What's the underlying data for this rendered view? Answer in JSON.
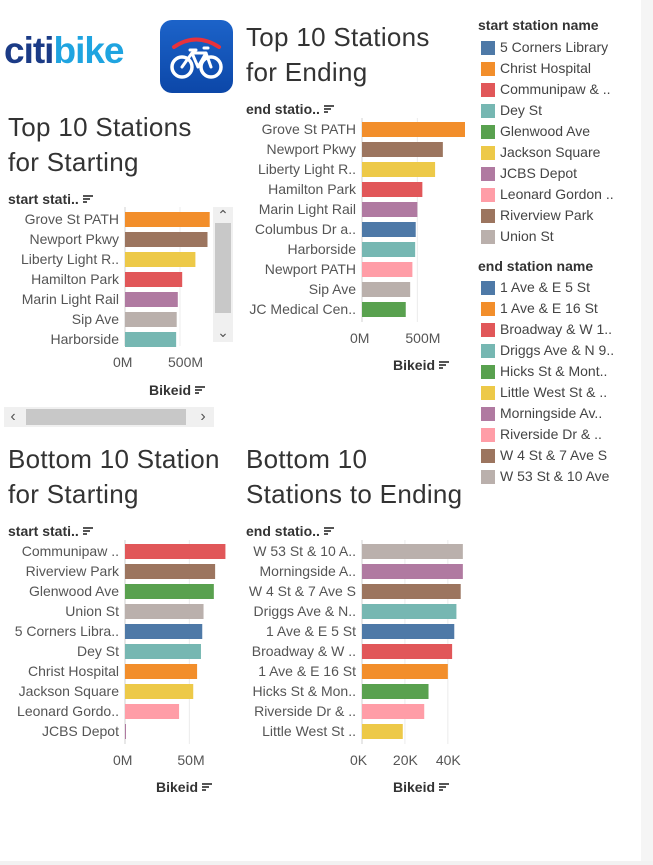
{
  "brand": {
    "logo_part1": "citi",
    "logo_part2": "bike"
  },
  "titles": {
    "top_ending": [
      "Top 10 Stations",
      "for Ending"
    ],
    "top_starting": [
      "Top 10 Stations",
      "for Starting"
    ],
    "bottom_starting": [
      "Bottom 10 Station",
      "for Starting"
    ],
    "bottom_ending": [
      "Bottom 10",
      "Stations to Ending"
    ]
  },
  "headers": {
    "start": "start stati..",
    "end": "end statio.."
  },
  "axis_title": "Bikeid",
  "scroll": {
    "up": "⌃",
    "down": "⌄",
    "left": "‹",
    "right": "›"
  },
  "colors": {
    "blue": "#4e79a7",
    "orange": "#f28e2b",
    "red": "#e15759",
    "teal": "#76b7b2",
    "green": "#59a14f",
    "yellow": "#edc948",
    "purple": "#b07aa1",
    "pink": "#ff9da7",
    "brown": "#9c755f",
    "gray": "#bab0ac"
  },
  "legend": {
    "start": {
      "title": "start station name",
      "items": [
        {
          "label": "5 Corners Library",
          "color": "#4e79a7"
        },
        {
          "label": "Christ Hospital",
          "color": "#f28e2b"
        },
        {
          "label": "Communipaw & ..",
          "color": "#e15759"
        },
        {
          "label": "Dey St",
          "color": "#76b7b2"
        },
        {
          "label": "Glenwood Ave",
          "color": "#59a14f"
        },
        {
          "label": "Jackson Square",
          "color": "#edc948"
        },
        {
          "label": "JCBS Depot",
          "color": "#b07aa1"
        },
        {
          "label": "Leonard Gordon ..",
          "color": "#ff9da7"
        },
        {
          "label": "Riverview Park",
          "color": "#9c755f"
        },
        {
          "label": "Union St",
          "color": "#bab0ac"
        }
      ]
    },
    "end": {
      "title": "end station name",
      "items": [
        {
          "label": "1 Ave & E 5 St",
          "color": "#4e79a7"
        },
        {
          "label": "1 Ave & E 16 St",
          "color": "#f28e2b"
        },
        {
          "label": "Broadway & W 1..",
          "color": "#e15759"
        },
        {
          "label": "Driggs Ave & N 9..",
          "color": "#76b7b2"
        },
        {
          "label": "Hicks St & Mont..",
          "color": "#59a14f"
        },
        {
          "label": "Little West St & ..",
          "color": "#edc948"
        },
        {
          "label": "Morningside Av..",
          "color": "#b07aa1"
        },
        {
          "label": "Riverside Dr & ..",
          "color": "#ff9da7"
        },
        {
          "label": "W 4 St & 7 Ave S",
          "color": "#9c755f"
        },
        {
          "label": "W 53 St & 10 Ave",
          "color": "#bab0ac"
        }
      ]
    }
  },
  "chart_data": [
    {
      "type": "bar",
      "orientation": "horizontal",
      "title": "Top 10 Stations for Ending",
      "field_header": "end statio..",
      "xlabel": "Bikeid",
      "xlim": [
        0,
        930
      ],
      "x_unit": "M",
      "ticks": [
        {
          "value": 0,
          "label": "0M"
        },
        {
          "value": 500,
          "label": "500M"
        }
      ],
      "categories": [
        "Grove St PATH",
        "Newport Pkwy",
        "Liberty Light R..",
        "Hamilton Park",
        "Marin Light Rail",
        "Columbus Dr a..",
        "Harborside",
        "Newport PATH",
        "Sip Ave",
        "JC Medical Cen.."
      ],
      "values": [
        930,
        730,
        660,
        545,
        500,
        485,
        480,
        455,
        435,
        395
      ],
      "colors": [
        "#f28e2b",
        "#9c755f",
        "#edc948",
        "#e15759",
        "#b07aa1",
        "#4e79a7",
        "#76b7b2",
        "#ff9da7",
        "#bab0ac",
        "#59a14f"
      ]
    },
    {
      "type": "bar",
      "orientation": "horizontal",
      "title": "Top 10 Stations for Starting",
      "field_header": "start stati..",
      "xlabel": "Bikeid",
      "xlim": [
        0,
        800
      ],
      "x_unit": "M",
      "ticks": [
        {
          "value": 0,
          "label": "0M"
        },
        {
          "value": 500,
          "label": "500M"
        }
      ],
      "categories": [
        "Grove St PATH",
        "Newport Pkwy",
        "Liberty Light R..",
        "Hamilton Park",
        "Marin Light Rail",
        "Sip Ave",
        "Harborside"
      ],
      "values": [
        770,
        750,
        640,
        520,
        480,
        470,
        465
      ],
      "colors": [
        "#f28e2b",
        "#9c755f",
        "#edc948",
        "#e15759",
        "#b07aa1",
        "#bab0ac",
        "#76b7b2"
      ]
    },
    {
      "type": "bar",
      "orientation": "horizontal",
      "title": "Bottom 10 Station for Starting",
      "field_header": "start stati..",
      "xlabel": "Bikeid",
      "xlim": [
        0,
        80
      ],
      "x_unit": "M",
      "ticks": [
        {
          "value": 0,
          "label": "0M"
        },
        {
          "value": 50,
          "label": "50M"
        }
      ],
      "categories": [
        "Communipaw ..",
        "Riverview Park",
        "Glenwood Ave",
        "Union St",
        "5 Corners Libra..",
        "Dey St",
        "Christ Hospital",
        "Jackson Square",
        "Leonard Gordo..",
        "JCBS Depot"
      ],
      "values": [
        78,
        70,
        69,
        61,
        60,
        59,
        56,
        53,
        42,
        0.3
      ],
      "colors": [
        "#e15759",
        "#9c755f",
        "#59a14f",
        "#bab0ac",
        "#4e79a7",
        "#76b7b2",
        "#f28e2b",
        "#edc948",
        "#ff9da7",
        "#b07aa1"
      ]
    },
    {
      "type": "bar",
      "orientation": "horizontal",
      "title": "Bottom 10 Stations to Ending",
      "field_header": "end statio..",
      "xlabel": "Bikeid",
      "xlim": [
        0,
        48
      ],
      "x_unit": "K",
      "ticks": [
        {
          "value": 0,
          "label": "0K"
        },
        {
          "value": 20,
          "label": "20K"
        },
        {
          "value": 40,
          "label": "40K"
        }
      ],
      "categories": [
        "W 53 St & 10 A..",
        "Morningside A..",
        "W 4 St & 7 Ave S",
        "Driggs Ave & N..",
        "1 Ave & E 5 St",
        "Broadway & W ..",
        "1 Ave & E 16 St",
        "Hicks St & Mon..",
        "Riverside Dr & ..",
        "Little West St .."
      ],
      "values": [
        47,
        47,
        46,
        44,
        43,
        42,
        40,
        31,
        29,
        19
      ],
      "colors": [
        "#bab0ac",
        "#b07aa1",
        "#9c755f",
        "#76b7b2",
        "#4e79a7",
        "#e15759",
        "#f28e2b",
        "#59a14f",
        "#ff9da7",
        "#edc948"
      ]
    }
  ]
}
